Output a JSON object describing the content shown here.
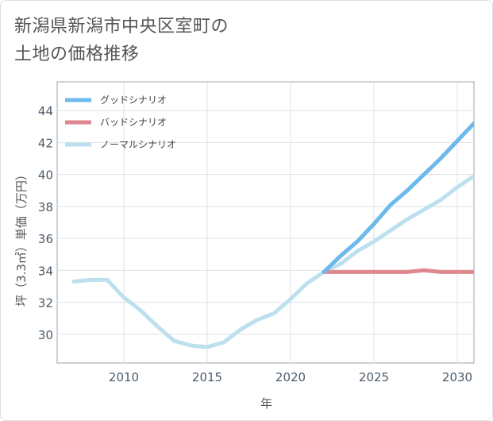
{
  "title_line1": "新潟県新潟市中央区室町の",
  "title_line2": "土地の価格推移",
  "chart_data": {
    "type": "line",
    "xlabel": "年",
    "ylabel": "坪（3.3㎡）単価（万円）",
    "xlim": [
      2006,
      2031
    ],
    "ylim": [
      28.2,
      45.8
    ],
    "x_ticks": [
      2010,
      2015,
      2020,
      2025,
      2030
    ],
    "y_ticks": [
      30,
      32,
      34,
      36,
      38,
      40,
      42,
      44
    ],
    "grid": true,
    "legend_position": "top-left",
    "series": [
      {
        "name": "グッドシナリオ",
        "color": "#6cb9ec",
        "x": [
          2022,
          2023,
          2024,
          2025,
          2026,
          2027,
          2028,
          2029,
          2030,
          2031
        ],
        "y": [
          33.9,
          34.9,
          35.8,
          36.9,
          38.1,
          39.0,
          40.0,
          41.0,
          42.1,
          43.2
        ]
      },
      {
        "name": "バッドシナリオ",
        "color": "#e0888f",
        "x": [
          2022,
          2023,
          2024,
          2025,
          2026,
          2027,
          2028,
          2029,
          2030,
          2031
        ],
        "y": [
          33.9,
          33.9,
          33.9,
          33.9,
          33.9,
          33.9,
          34.0,
          33.9,
          33.9,
          33.9
        ]
      },
      {
        "name": "ノーマルシナリオ",
        "color": "#bde0ee",
        "x": [
          2007,
          2008,
          2009,
          2010,
          2011,
          2012,
          2013,
          2014,
          2015,
          2016,
          2017,
          2018,
          2019,
          2020,
          2021,
          2022,
          2023,
          2024,
          2025,
          2026,
          2027,
          2028,
          2029,
          2030,
          2031
        ],
        "y": [
          33.3,
          33.4,
          33.4,
          32.3,
          31.5,
          30.5,
          29.6,
          29.3,
          29.2,
          29.5,
          30.3,
          30.9,
          31.3,
          32.2,
          33.2,
          33.9,
          34.4,
          35.2,
          35.8,
          36.5,
          37.2,
          37.8,
          38.4,
          39.2,
          39.9
        ]
      }
    ]
  }
}
